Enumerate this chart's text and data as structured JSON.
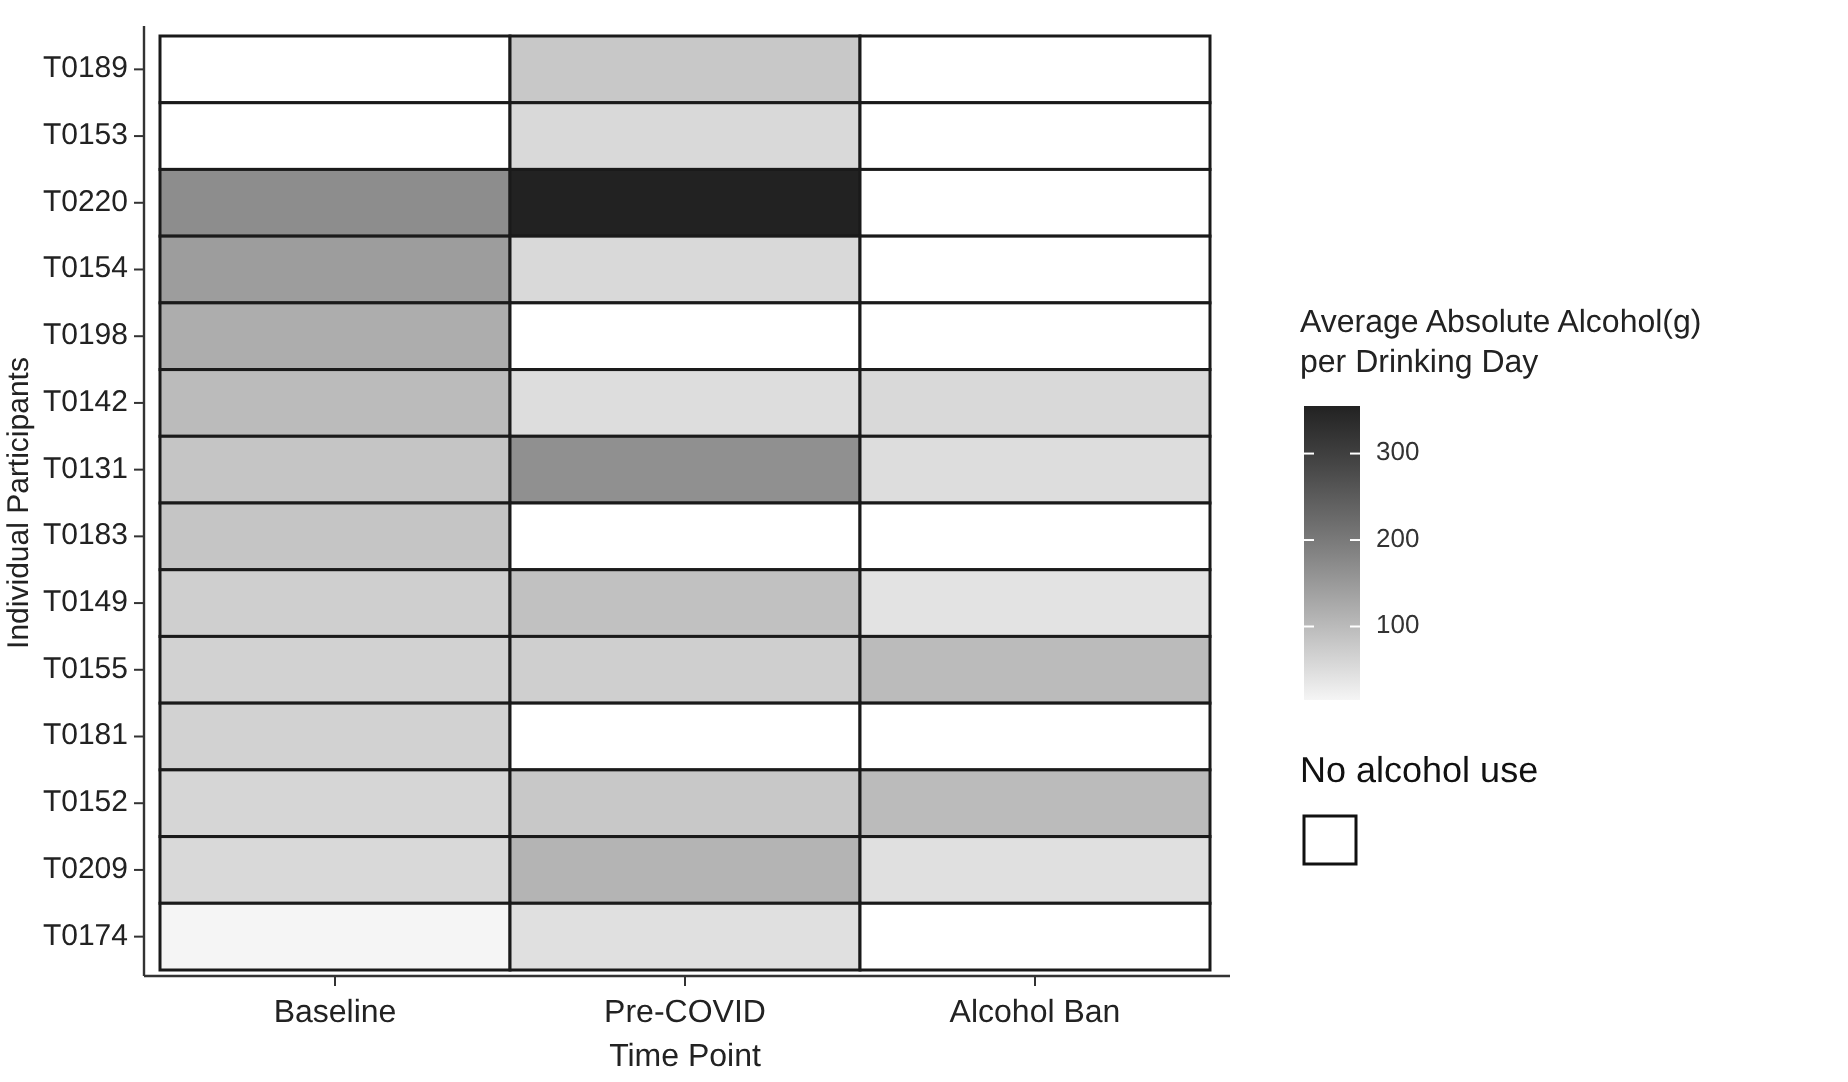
{
  "chart_data": {
    "type": "heatmap",
    "xlabel": "Time Point",
    "ylabel": "Individual Participants",
    "legend_title": "No alcohol use",
    "clabel": "Average Absolute Alcohol(g)\nper Drinking Day",
    "categories": [
      "Baseline",
      "Pre-COVID",
      "Alcohol Ban"
    ],
    "y_categories": [
      "T0189",
      "T0153",
      "T0220",
      "T0154",
      "T0198",
      "T0142",
      "T0131",
      "T0183",
      "T0149",
      "T0155",
      "T0181",
      "T0152",
      "T0209",
      "T0174"
    ],
    "cells": [
      [
        null,
        80,
        null
      ],
      [
        null,
        55,
        null
      ],
      [
        170,
        355,
        null
      ],
      [
        145,
        55,
        null
      ],
      [
        120,
        null,
        null
      ],
      [
        100,
        50,
        55
      ],
      [
        85,
        165,
        50
      ],
      [
        85,
        null,
        null
      ],
      [
        70,
        90,
        40
      ],
      [
        65,
        70,
        100
      ],
      [
        65,
        null,
        null
      ],
      [
        60,
        80,
        100
      ],
      [
        55,
        110,
        45
      ],
      [
        15,
        45,
        null
      ]
    ],
    "clim": [
      15,
      355
    ],
    "cticks": [
      100,
      200,
      300
    ]
  }
}
